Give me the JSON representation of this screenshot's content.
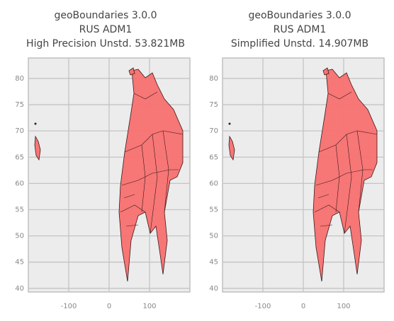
{
  "chart_data": [
    {
      "type": "map",
      "title_lines": [
        "geoBoundaries 3.0.0",
        "RUS ADM1",
        "High Precision Unstd. 53.821MB"
      ],
      "xlim": [
        -200,
        200
      ],
      "xticks": [
        -100,
        0,
        100
      ],
      "ylim": [
        39.3,
        83.9
      ],
      "yticks": [
        40,
        45,
        50,
        55,
        60,
        65,
        70,
        75,
        80
      ],
      "grid": true,
      "color": "#f87070"
    },
    {
      "type": "map",
      "title_lines": [
        "geoBoundaries 3.0.0",
        "RUS ADM1",
        "Simplified Unstd. 14.907MB"
      ],
      "xlim": [
        -200,
        200
      ],
      "xticks": [
        -100,
        0,
        100
      ],
      "ylim": [
        39.3,
        83.9
      ],
      "yticks": [
        40,
        45,
        50,
        55,
        60,
        65,
        70,
        75,
        80
      ],
      "grid": true,
      "color": "#f87070"
    }
  ]
}
